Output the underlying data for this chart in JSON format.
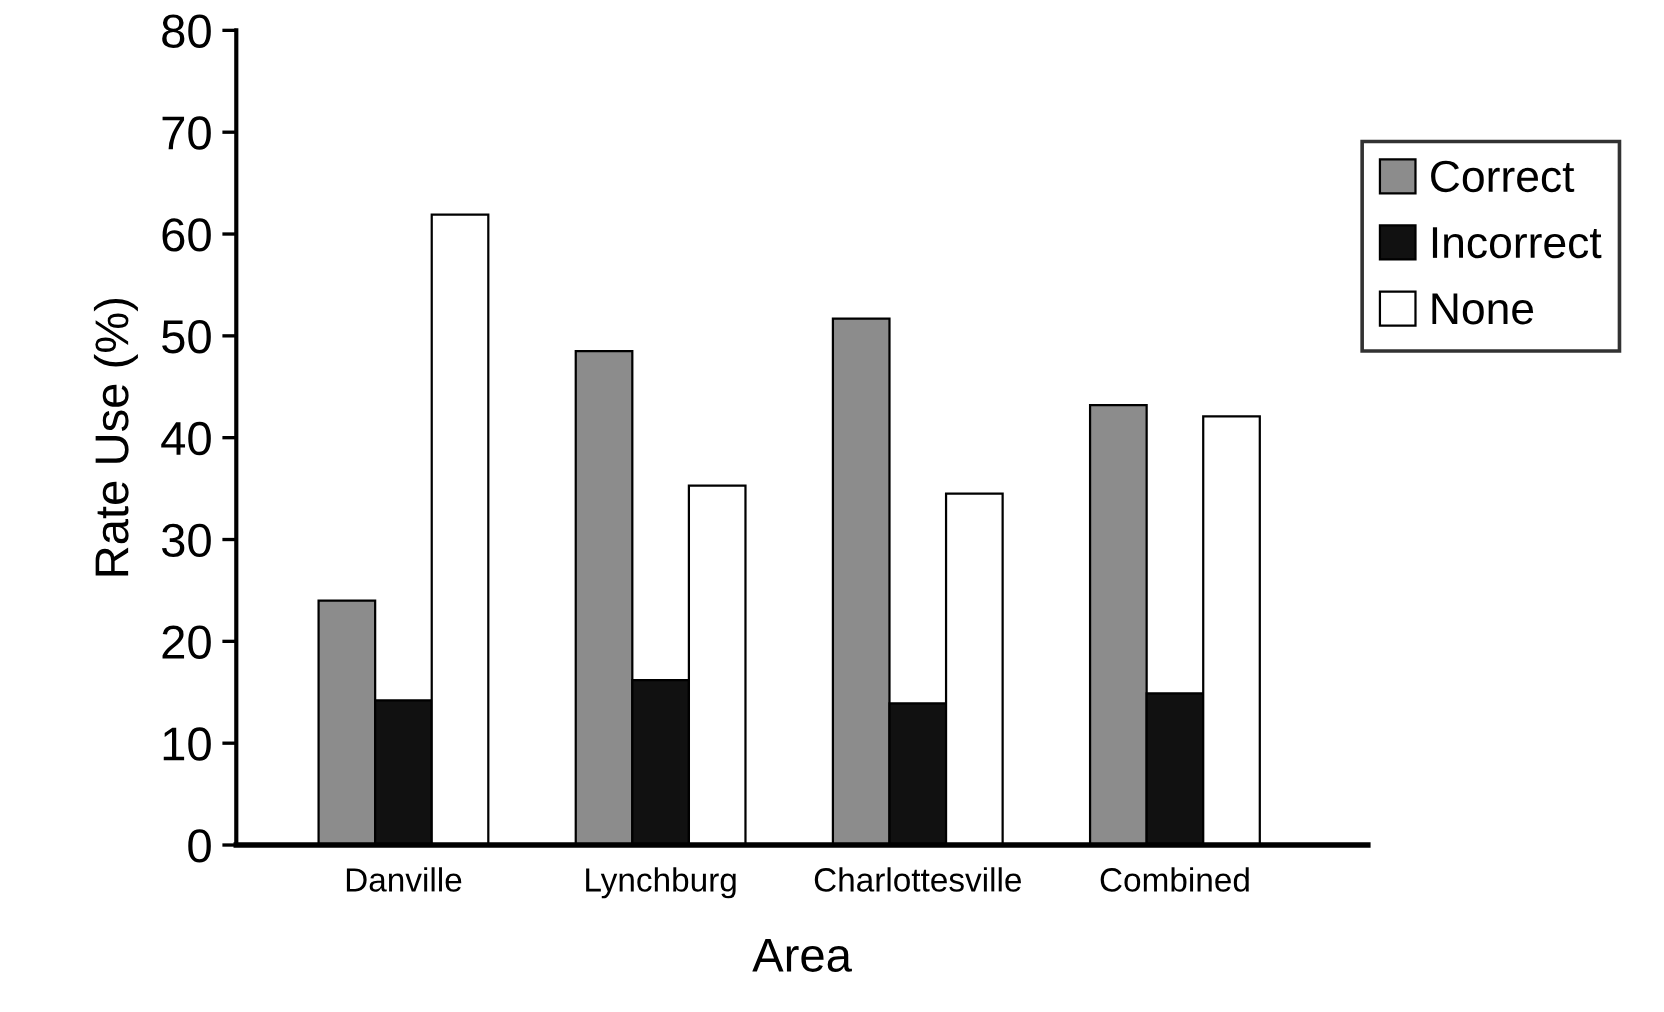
{
  "chart_data": {
    "type": "bar",
    "xlabel": "Area",
    "ylabel": "Rate Use (%)",
    "categories": [
      "Danville",
      "Lynchburg",
      "Charlottesville",
      "Combined"
    ],
    "series": [
      {
        "name": "Correct",
        "color": "#8c8c8c",
        "values": [
          24.0,
          48.5,
          51.7,
          43.2
        ]
      },
      {
        "name": "Incorrect",
        "color": "#111111",
        "values": [
          14.2,
          16.2,
          13.9,
          14.9
        ]
      },
      {
        "name": "None",
        "color": "#ffffff",
        "values": [
          61.9,
          35.3,
          34.5,
          42.1
        ]
      }
    ],
    "ylim": [
      0,
      80
    ],
    "yticks": [
      0,
      10,
      20,
      30,
      40,
      50,
      60,
      70,
      80
    ],
    "grid": false,
    "legend": "right"
  }
}
